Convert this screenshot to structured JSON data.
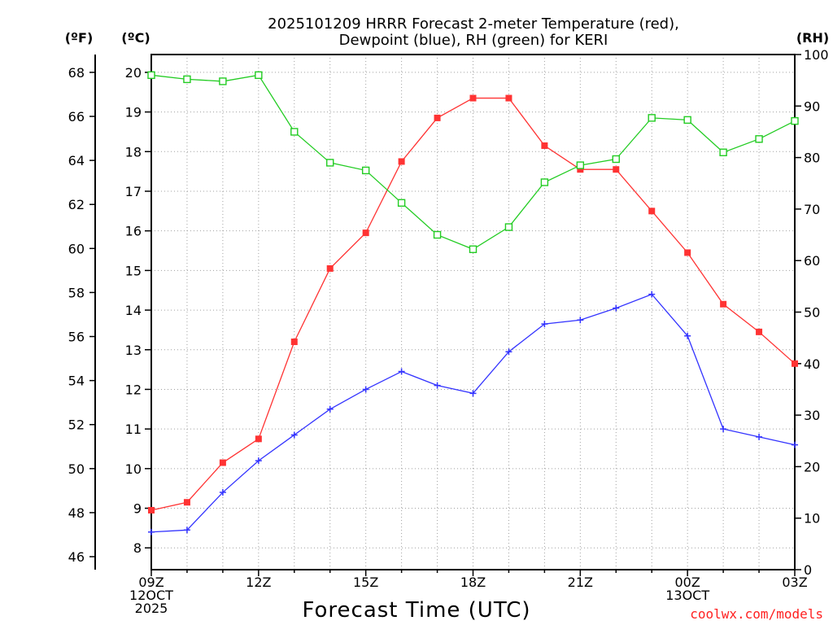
{
  "chart_data": {
    "type": "line",
    "title_line1": "2025101209 HRRR Forecast 2-meter Temperature (red),",
    "title_line2": "Dewpoint (blue), RH (green) for KERI",
    "xlabel": "Forecast Time (UTC)",
    "credit": "coolwx.com/models",
    "units": {
      "fahrenheit": "(ºF)",
      "celsius": "(ºC)",
      "rh": "(RH)"
    },
    "x_hours": [
      0,
      1,
      2,
      3,
      4,
      5,
      6,
      7,
      8,
      9,
      10,
      11,
      12,
      13,
      14,
      15,
      16,
      17,
      18
    ],
    "x_ticks": [
      {
        "hour": 0,
        "line1": "09Z",
        "line2": "12OCT",
        "line3": "2025"
      },
      {
        "hour": 3,
        "line1": "12Z",
        "line2": "",
        "line3": ""
      },
      {
        "hour": 6,
        "line1": "15Z",
        "line2": "",
        "line3": ""
      },
      {
        "hour": 9,
        "line1": "18Z",
        "line2": "",
        "line3": ""
      },
      {
        "hour": 12,
        "line1": "21Z",
        "line2": "",
        "line3": ""
      },
      {
        "hour": 15,
        "line1": "00Z",
        "line2": "13OCT",
        "line3": ""
      },
      {
        "hour": 18,
        "line1": "03Z",
        "line2": "",
        "line3": ""
      }
    ],
    "f_ticks": [
      "46",
      "48",
      "50",
      "52",
      "54",
      "56",
      "58",
      "60",
      "62",
      "64",
      "66",
      "68"
    ],
    "c_ticks": [
      "8",
      "9",
      "10",
      "11",
      "12",
      "13",
      "14",
      "15",
      "16",
      "17",
      "18",
      "19",
      "20"
    ],
    "rh_ticks": [
      "0",
      "10",
      "20",
      "30",
      "40",
      "50",
      "60",
      "70",
      "80",
      "90",
      "100"
    ],
    "c_range": [
      7.45,
      20.45
    ],
    "rh_range": [
      0,
      100
    ],
    "series": [
      {
        "name": "Temperature",
        "unit": "C",
        "color": "#ff3333",
        "marker": "filled-square",
        "values": [
          8.95,
          9.15,
          10.15,
          10.75,
          13.2,
          15.05,
          15.95,
          17.75,
          18.85,
          19.35,
          19.35,
          18.15,
          17.55,
          17.55,
          16.5,
          15.45,
          14.15,
          13.45,
          12.65
        ]
      },
      {
        "name": "Dewpoint",
        "unit": "C",
        "color": "#3333ff",
        "marker": "plus",
        "values": [
          8.4,
          8.45,
          9.4,
          10.2,
          10.85,
          11.5,
          12.0,
          12.45,
          12.1,
          11.9,
          12.95,
          13.65,
          13.75,
          14.05,
          14.4,
          13.35,
          11.0,
          10.8,
          10.6
        ]
      },
      {
        "name": "RH",
        "unit": "%",
        "color": "#22cc22",
        "marker": "open-square",
        "values": [
          96,
          95.2,
          94.8,
          96,
          85,
          79,
          77.5,
          71.2,
          65,
          62.2,
          66.5,
          75.2,
          78.5,
          79.7,
          87.7,
          87.3,
          81,
          83.6,
          87.1
        ]
      }
    ]
  }
}
